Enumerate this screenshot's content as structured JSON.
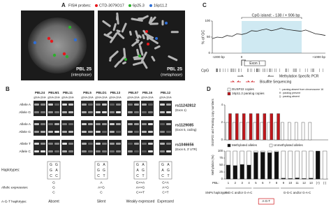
{
  "panel_a": {
    "letter": "A",
    "legend_title": "FISH probes:",
    "probes": [
      {
        "name": "CTD-3079O17",
        "color": "#e8161b"
      },
      {
        "name": "6p25.3",
        "color": "#2bb02b"
      },
      {
        "name": "16p11.2",
        "color": "#2f6fd6"
      }
    ],
    "images": [
      {
        "label": "PBL 25",
        "sublabel": "(interphase)"
      },
      {
        "label": "PBL 25",
        "sublabel": "(metaphase)"
      }
    ]
  },
  "panel_b": {
    "letter": "B",
    "lane_labels": [
      "gDNA",
      "cDNA"
    ],
    "groups": [
      {
        "samples": [
          "PBL24",
          "PBLM1",
          "PBL11"
        ],
        "haplotypes": [
          [
            "G",
            "G"
          ],
          [
            "G",
            "A"
          ],
          [
            "C",
            "C"
          ]
        ],
        "allelic_expression": [
          "G",
          "G",
          "C"
        ],
        "expression": "Absent"
      },
      {
        "samples": [
          "PBL5",
          "PBLD1",
          "PBL13"
        ],
        "haplotypes": [
          [
            "G",
            "A"
          ],
          [
            "G",
            "G"
          ],
          [
            "C",
            "T"
          ]
        ],
        "allelic_expression": [
          "A",
          "A+G",
          "C"
        ],
        "expression": "Silent"
      },
      {
        "samples": [
          "PBL57",
          "PBL16"
        ],
        "haplotypes": [
          [
            "G",
            "A"
          ],
          [
            "A",
            "G"
          ],
          [
            "C",
            "T"
          ]
        ],
        "allelic_expression": [
          "G>>A",
          "A>>G",
          "C>>T"
        ],
        "expression": "Weakly expressed"
      },
      {
        "samples": [
          "PBL12"
        ],
        "haplotypes": [
          [
            "G",
            "A"
          ],
          [
            "A",
            "G"
          ],
          [
            "C",
            "T"
          ]
        ],
        "allelic_expression": [
          "G+A",
          "A+G",
          "C+T"
        ],
        "expression": "Expressed"
      }
    ],
    "snps": [
      {
        "alleles": [
          "Allele A",
          "Allele G"
        ],
        "name": "rs11242812",
        "location": "(Exon 1)"
      },
      {
        "alleles": [
          "Allele A",
          "Allele G"
        ],
        "name": "rs1129085",
        "location": "(Exon 5, coding)"
      },
      {
        "alleles": [
          "Allele T",
          "Allele C"
        ],
        "name": "rs1046656",
        "location": "(Exon 6, 3' UTR)"
      }
    ],
    "row_labels": {
      "haplotypes": "Haplotypes:",
      "expression": "Allelic expression:",
      "agt": "A-G-T haplotype:"
    }
  },
  "panel_c": {
    "letter": "C",
    "title": "CpG island: - 138 / + 906 bp",
    "y_label": "% of GC",
    "yticks": [
      0,
      50,
      100
    ],
    "ylim": [
      0,
      100
    ],
    "gc_values": [
      45,
      50,
      48,
      55,
      52,
      60,
      58,
      62,
      70,
      68,
      72,
      75,
      70,
      73,
      78,
      74,
      72,
      70,
      68,
      72,
      66,
      60,
      58,
      55
    ],
    "x_labels": [
      "-1000 bp",
      "0",
      "+1000 bp"
    ],
    "exon": "Exon 1",
    "cpg_label": "CpG",
    "msp": "Methylation Specific PCR",
    "bisulfite": "Bisulfite Sequencing"
  },
  "panel_d": {
    "letter": "D",
    "copy_chart": {
      "y_label": "DUSP22 and Paralog copy numbers",
      "ylim": [
        0,
        4
      ],
      "yticks": [
        0,
        2,
        4
      ],
      "series": [
        {
          "name": "DUSP22 copies",
          "color": "#ffffff",
          "values": [
            2,
            2,
            2,
            2,
            2,
            2,
            2,
            2,
            2,
            2,
            2,
            2,
            2
          ]
        },
        {
          "name": "16p11.2 paralog copies",
          "color": "#c0161b",
          "values": [
            3,
            3,
            3,
            3,
            3,
            3,
            3,
            3,
            0,
            0,
            0,
            0,
            0
          ]
        }
      ],
      "notes": [
        "* : paralog absent from chromosome 16",
        "¥ : paralog present",
        "§ : paralog absent"
      ]
    },
    "methylation_chart": {
      "y_label": "Methylation (%)",
      "ylim": [
        0,
        100
      ],
      "yticks": [
        0,
        25,
        50,
        75,
        100
      ],
      "categories": [
        "1",
        "2",
        "3",
        "4",
        "5",
        "6",
        "7",
        "8",
        "9",
        "10",
        "11",
        "12",
        "13",
        "(+)",
        "(-)"
      ],
      "series": [
        {
          "name": "Methylated alleles",
          "color": "#111111",
          "values": [
            50,
            48,
            52,
            50,
            95,
            96,
            94,
            97,
            3,
            2,
            4,
            2,
            3,
            100,
            0
          ]
        },
        {
          "name": "Unmethylated alleles",
          "color": "#ffffff",
          "values": [
            50,
            52,
            48,
            50,
            5,
            4,
            6,
            3,
            97,
            98,
            96,
            98,
            97,
            0,
            100
          ]
        }
      ],
      "x_prefix": "PBL:",
      "haplotype_label": "SNPs haplotypes:",
      "haplotype_groups": [
        "G-G-C and/or G-A-C",
        "A-G-T",
        "G-G-C and/or G-A-C"
      ]
    }
  }
}
